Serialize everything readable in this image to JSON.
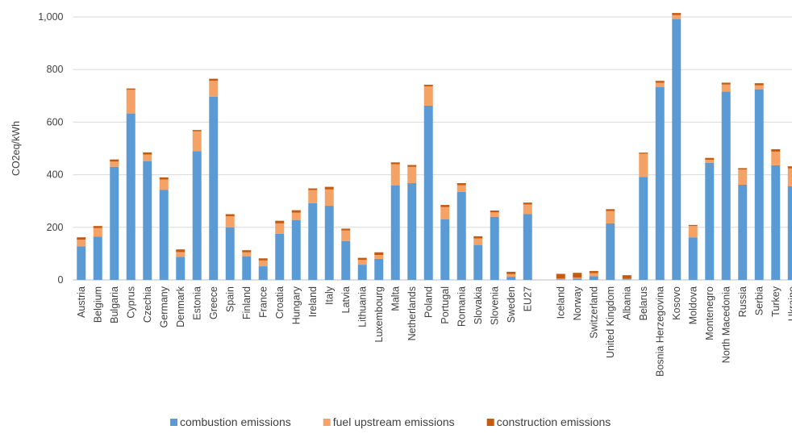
{
  "chart_data": {
    "type": "bar",
    "stacked": true,
    "y_label": "CO2eq/kWh",
    "categories": [
      "Austria",
      "Belgium",
      "Bulgaria",
      "Cyprus",
      "Czechia",
      "Germany",
      "Denmark",
      "Estonia",
      "Greece",
      "Spain",
      "Finland",
      "France",
      "Croatia",
      "Hungary",
      "Ireland",
      "Italy",
      "Latvia",
      "Lithuania",
      "Luxembourg",
      "Malta",
      "Netherlands",
      "Poland",
      "Portugal",
      "Romania",
      "Slovakia",
      "Slovenia",
      "Sweden",
      "EU27",
      null,
      "Iceland",
      "Norway",
      "Switzerland",
      "United Kingdom",
      "Albania",
      "Belarus",
      "Bosnia Herzegovina",
      "Kosovo",
      "Moldova",
      "Montenegro",
      "North Macedonia",
      "Russia",
      "Serbia",
      "Turkey",
      "Ukraine"
    ],
    "series": [
      {
        "name": "combustion emissions",
        "color": "#5b9bd5",
        "values": [
          128,
          165,
          430,
          633,
          452,
          342,
          88,
          490,
          697,
          200,
          90,
          52,
          175,
          228,
          292,
          282,
          148,
          58,
          80,
          360,
          368,
          663,
          230,
          335,
          133,
          240,
          12,
          250,
          null,
          2,
          5,
          14,
          215,
          2,
          392,
          733,
          992,
          162,
          445,
          716,
          362,
          725,
          436,
          356
        ]
      },
      {
        "name": "fuel upstream emissions",
        "color": "#f4a266",
        "values": [
          25,
          32,
          20,
          90,
          25,
          40,
          18,
          75,
          60,
          42,
          15,
          22,
          40,
          28,
          50,
          62,
          40,
          18,
          15,
          80,
          62,
          73,
          47,
          25,
          25,
          17,
          10,
          37,
          null,
          3,
          4,
          12,
          47,
          2,
          88,
          17,
          15,
          43,
          12,
          27,
          58,
          15,
          52,
          68
        ]
      },
      {
        "name": "construction emissions",
        "color": "#c55a11",
        "values": [
          9,
          8,
          8,
          5,
          8,
          8,
          10,
          5,
          8,
          8,
          8,
          8,
          10,
          9,
          6,
          10,
          7,
          8,
          10,
          7,
          7,
          6,
          8,
          8,
          8,
          7,
          9,
          7,
          null,
          18,
          18,
          8,
          7,
          14,
          4,
          7,
          8,
          4,
          7,
          7,
          5,
          8,
          9,
          8
        ]
      }
    ],
    "ylim": [
      0,
      1000
    ],
    "yticks": [
      0,
      200,
      400,
      600,
      800,
      {
        "value": 1000,
        "label": "1,000"
      }
    ],
    "grid": true,
    "legend": "bottom"
  }
}
